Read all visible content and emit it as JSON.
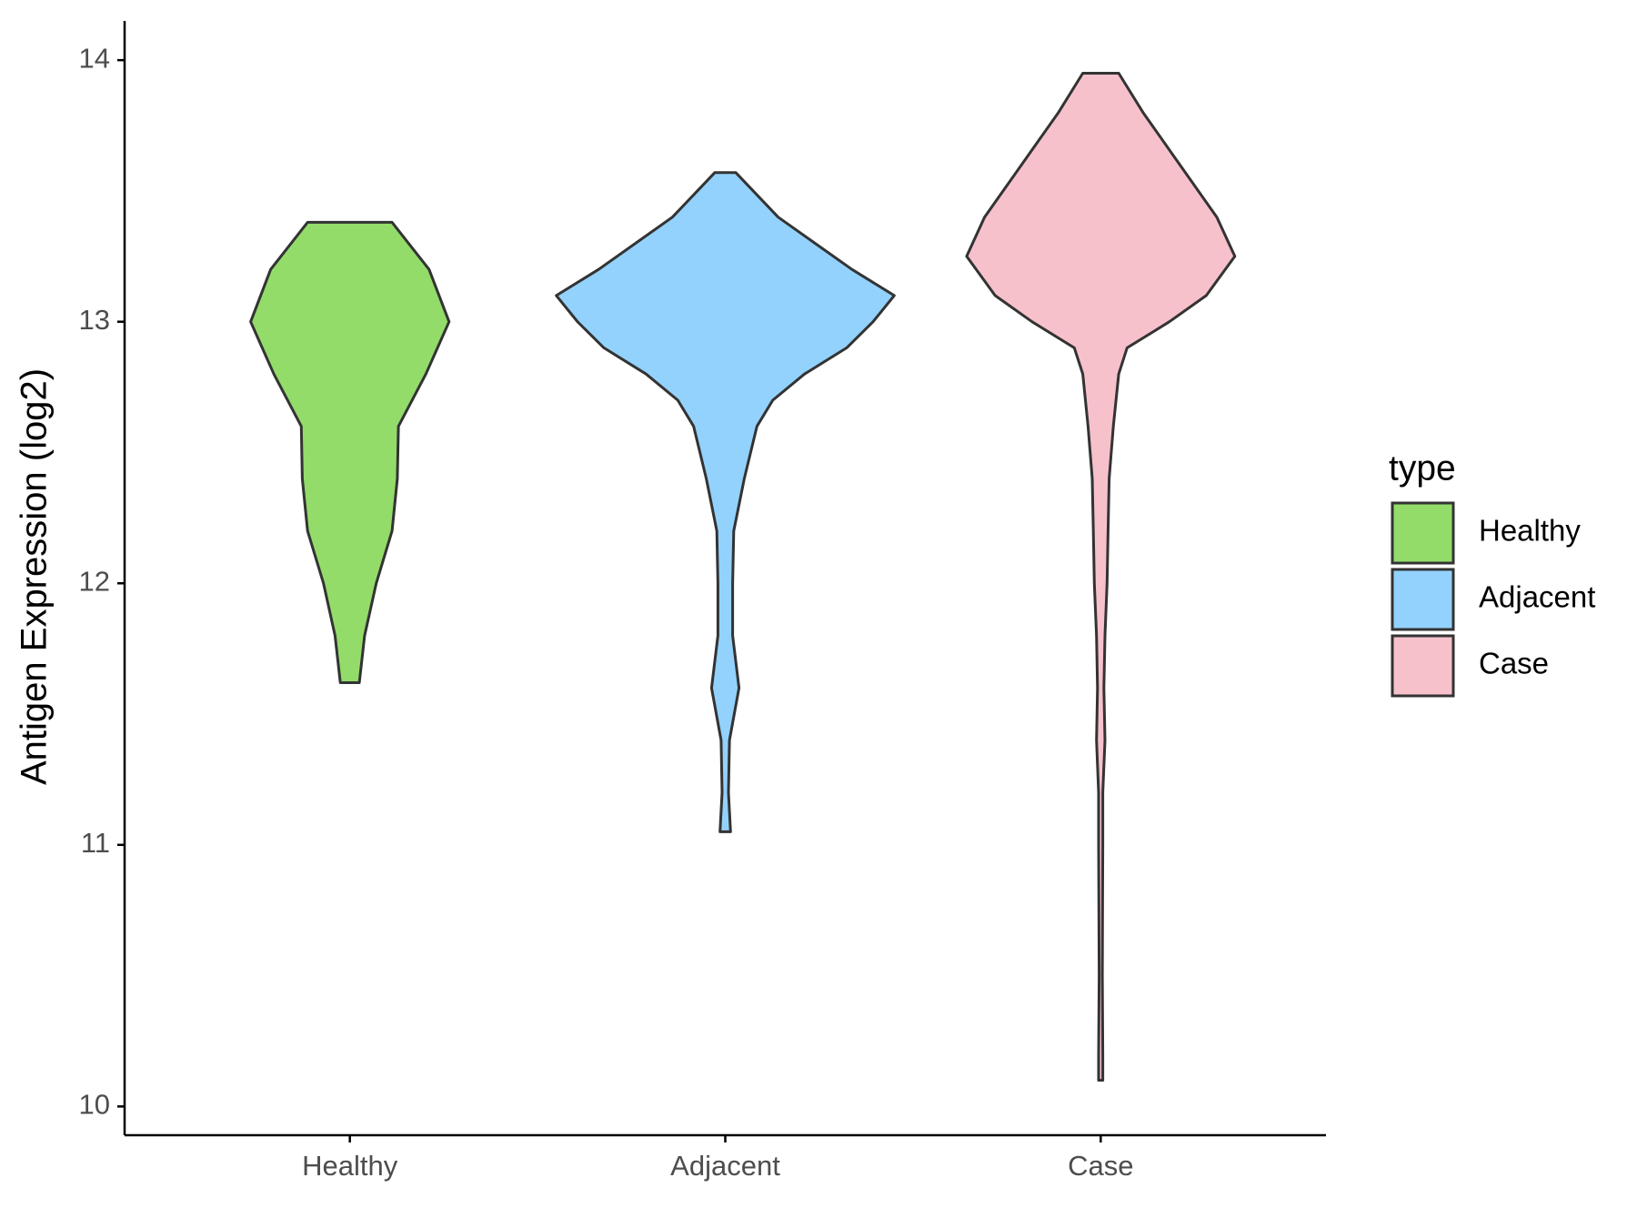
{
  "chart_data": {
    "type": "violin",
    "y_label": "Antigen Expression (log2)",
    "categories": [
      "Healthy",
      "Adjacent",
      "Case"
    ],
    "legend_title": "type",
    "legend_position": "right",
    "ylim": [
      9.89,
      14.15
    ],
    "yticks": [
      10,
      11,
      12,
      13,
      14
    ],
    "grid": false,
    "series": [
      {
        "name": "Healthy",
        "color": "#93dc6a",
        "y": [
          13.38,
          13.2,
          13.0,
          12.8,
          12.6,
          12.4,
          12.2,
          12.0,
          11.8,
          11.62
        ],
        "width": [
          40,
          75,
          94,
          72,
          46,
          45,
          40,
          25,
          14,
          9
        ]
      },
      {
        "name": "Adjacent",
        "color": "#93d2fd",
        "y": [
          13.57,
          13.4,
          13.2,
          13.1,
          13.0,
          12.9,
          12.8,
          12.7,
          12.6,
          12.4,
          12.2,
          12.0,
          11.8,
          11.6,
          11.4,
          11.2,
          11.05
        ],
        "width": [
          10,
          50,
          120,
          160,
          140,
          115,
          75,
          45,
          30,
          18,
          8,
          7,
          7,
          13,
          4,
          3,
          5
        ]
      },
      {
        "name": "Case",
        "color": "#f7c1cc",
        "y": [
          13.95,
          13.8,
          13.6,
          13.4,
          13.25,
          13.1,
          13.0,
          12.9,
          12.8,
          12.6,
          12.4,
          12.2,
          12.0,
          11.8,
          11.6,
          11.4,
          11.2,
          11.0,
          10.5,
          10.2,
          10.1
        ],
        "width": [
          17,
          40,
          75,
          110,
          127,
          100,
          65,
          25,
          17,
          12,
          8,
          7,
          6,
          4,
          3,
          4,
          2,
          2,
          1.5,
          2,
          2
        ]
      }
    ]
  }
}
